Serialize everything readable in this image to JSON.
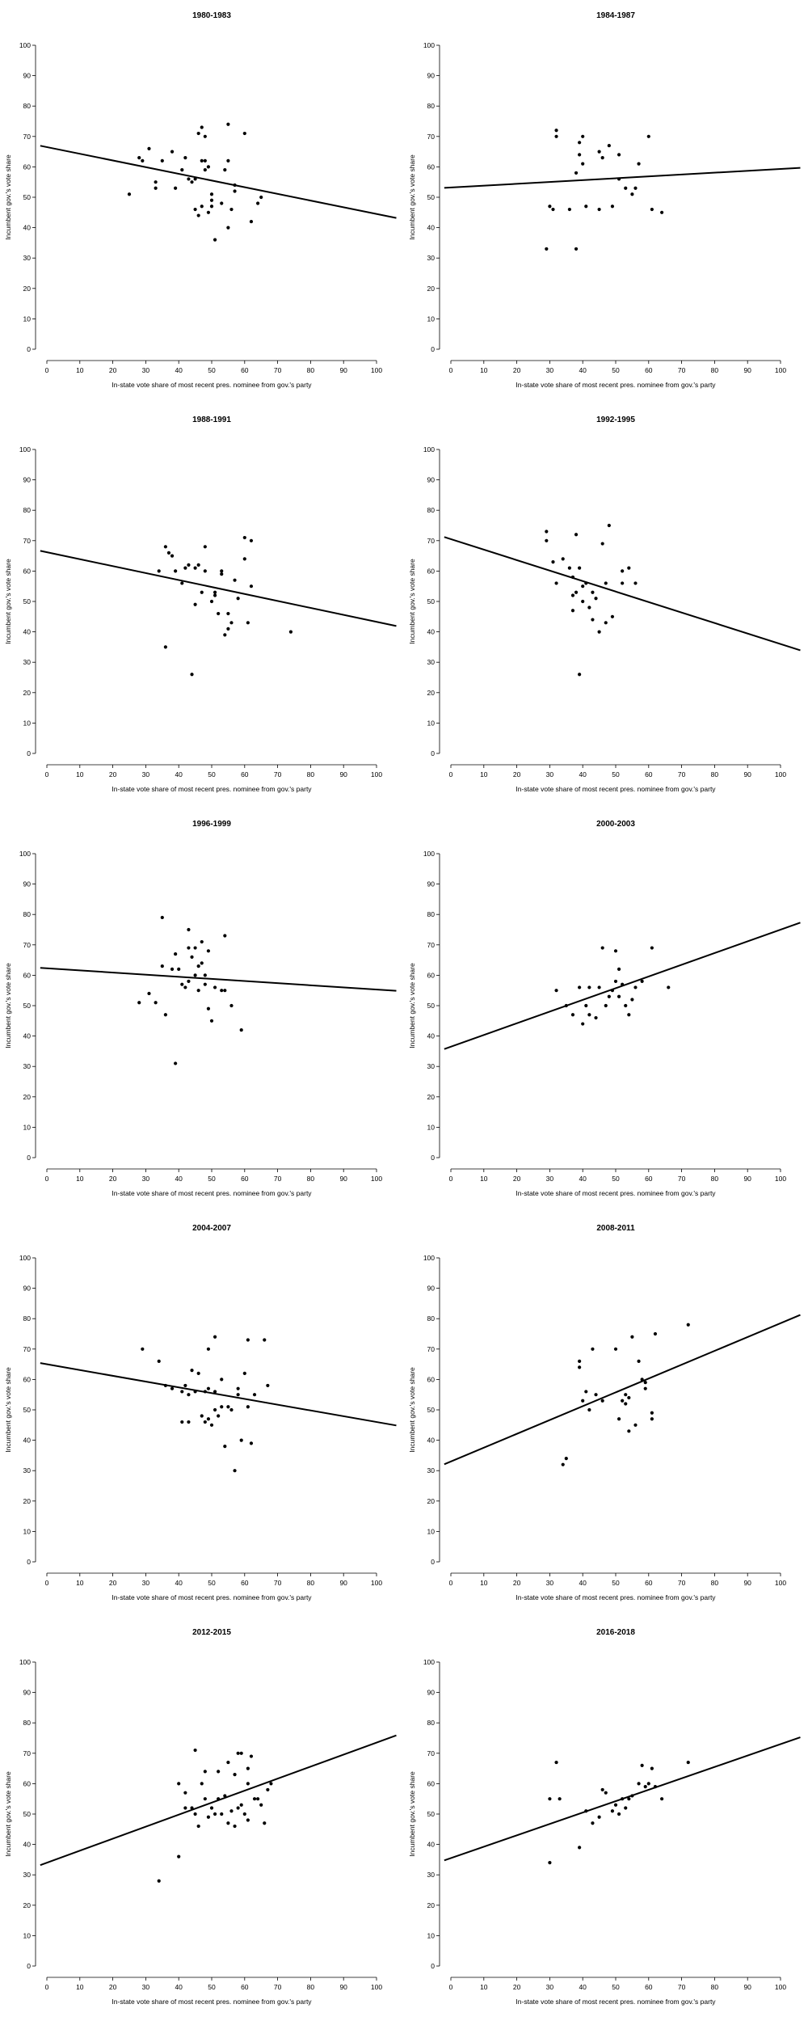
{
  "chart_data": [
    {
      "type": "scatter",
      "title": "1980-1983",
      "xlabel": "In-state vote share of most recent pres. nominee from gov.'s party",
      "ylabel": "Incumbent gov.'s vote share",
      "xlim": [
        0,
        100
      ],
      "ylim": [
        0,
        100
      ],
      "fit": {
        "y_at_x0": 66.5,
        "y_at_x100": 44.5
      },
      "points": [
        [
          25,
          51
        ],
        [
          28,
          63
        ],
        [
          29,
          62
        ],
        [
          31,
          66
        ],
        [
          33,
          53
        ],
        [
          33,
          55
        ],
        [
          35,
          62
        ],
        [
          38,
          65
        ],
        [
          39,
          53
        ],
        [
          41,
          59
        ],
        [
          42,
          63
        ],
        [
          43,
          56
        ],
        [
          44,
          55
        ],
        [
          45,
          46
        ],
        [
          45,
          56
        ],
        [
          46,
          44
        ],
        [
          47,
          47
        ],
        [
          46,
          71
        ],
        [
          47,
          73
        ],
        [
          48,
          70
        ],
        [
          47,
          62
        ],
        [
          48,
          62
        ],
        [
          48,
          59
        ],
        [
          49,
          60
        ],
        [
          49,
          45
        ],
        [
          50,
          51
        ],
        [
          50,
          49
        ],
        [
          50,
          47
        ],
        [
          51,
          36
        ],
        [
          53,
          48
        ],
        [
          54,
          59
        ],
        [
          55,
          74
        ],
        [
          55,
          62
        ],
        [
          55,
          40
        ],
        [
          56,
          46
        ],
        [
          57,
          52
        ],
        [
          57,
          54
        ],
        [
          60,
          71
        ],
        [
          62,
          42
        ],
        [
          64,
          48
        ],
        [
          65,
          50
        ]
      ]
    },
    {
      "type": "scatter",
      "title": "1984-1987",
      "xlabel": "In-state vote share of most recent pres. nominee from gov.'s party",
      "ylabel": "Incumbent gov.'s vote share",
      "xlim": [
        0,
        100
      ],
      "ylim": [
        0,
        100
      ],
      "fit": {
        "y_at_x0": 53.2,
        "y_at_x100": 59.3
      },
      "points": [
        [
          29,
          33
        ],
        [
          30,
          47
        ],
        [
          31,
          46
        ],
        [
          32,
          72
        ],
        [
          32,
          70
        ],
        [
          36,
          46
        ],
        [
          38,
          33
        ],
        [
          38,
          58
        ],
        [
          39,
          64
        ],
        [
          39,
          68
        ],
        [
          40,
          70
        ],
        [
          40,
          61
        ],
        [
          41,
          47
        ],
        [
          45,
          46
        ],
        [
          45,
          65
        ],
        [
          46,
          63
        ],
        [
          48,
          67
        ],
        [
          49,
          47
        ],
        [
          51,
          56
        ],
        [
          51,
          64
        ],
        [
          53,
          53
        ],
        [
          55,
          51
        ],
        [
          56,
          53
        ],
        [
          57,
          61
        ],
        [
          60,
          70
        ],
        [
          61,
          46
        ],
        [
          64,
          45
        ]
      ]
    },
    {
      "type": "scatter",
      "title": "1988-1991",
      "xlabel": "In-state vote share of most recent pres. nominee from gov.'s party",
      "ylabel": "Incumbent gov.'s vote share",
      "xlim": [
        0,
        100
      ],
      "ylim": [
        0,
        100
      ],
      "fit": {
        "y_at_x0": 66.2,
        "y_at_x100": 43.3
      },
      "points": [
        [
          34,
          60
        ],
        [
          36,
          35
        ],
        [
          36,
          68
        ],
        [
          37,
          66
        ],
        [
          38,
          65
        ],
        [
          39,
          60
        ],
        [
          41,
          56
        ],
        [
          42,
          61
        ],
        [
          43,
          62
        ],
        [
          44,
          26
        ],
        [
          45,
          49
        ],
        [
          45,
          61
        ],
        [
          46,
          62
        ],
        [
          47,
          53
        ],
        [
          48,
          68
        ],
        [
          48,
          60
        ],
        [
          50,
          50
        ],
        [
          51,
          52
        ],
        [
          51,
          53
        ],
        [
          52,
          46
        ],
        [
          53,
          59
        ],
        [
          53,
          60
        ],
        [
          54,
          39
        ],
        [
          55,
          41
        ],
        [
          55,
          46
        ],
        [
          56,
          43
        ],
        [
          57,
          57
        ],
        [
          58,
          51
        ],
        [
          60,
          71
        ],
        [
          60,
          64
        ],
        [
          61,
          43
        ],
        [
          62,
          70
        ],
        [
          62,
          55
        ],
        [
          74,
          40
        ]
      ]
    },
    {
      "type": "scatter",
      "title": "1992-1995",
      "xlabel": "In-state vote share of most recent pres. nominee from gov.'s party",
      "ylabel": "Incumbent gov.'s vote share",
      "xlim": [
        0,
        100
      ],
      "ylim": [
        0,
        100
      ],
      "fit": {
        "y_at_x0": 70.5,
        "y_at_x100": 36.0
      },
      "points": [
        [
          29,
          73
        ],
        [
          29,
          70
        ],
        [
          31,
          63
        ],
        [
          32,
          56
        ],
        [
          34,
          64
        ],
        [
          36,
          61
        ],
        [
          37,
          58
        ],
        [
          37,
          47
        ],
        [
          37,
          52
        ],
        [
          38,
          72
        ],
        [
          38,
          53
        ],
        [
          39,
          26
        ],
        [
          39,
          61
        ],
        [
          40,
          50
        ],
        [
          40,
          55
        ],
        [
          41,
          56
        ],
        [
          42,
          48
        ],
        [
          43,
          53
        ],
        [
          43,
          44
        ],
        [
          44,
          51
        ],
        [
          45,
          40
        ],
        [
          46,
          69
        ],
        [
          47,
          43
        ],
        [
          47,
          56
        ],
        [
          48,
          75
        ],
        [
          49,
          45
        ],
        [
          52,
          56
        ],
        [
          52,
          60
        ],
        [
          54,
          61
        ],
        [
          56,
          56
        ]
      ]
    },
    {
      "type": "scatter",
      "title": "1996-1999",
      "xlabel": "In-state vote share of most recent pres. nominee from gov.'s party",
      "ylabel": "Incumbent gov.'s vote share",
      "xlim": [
        0,
        100
      ],
      "ylim": [
        0,
        100
      ],
      "fit": {
        "y_at_x0": 62.3,
        "y_at_x100": 55.3
      },
      "points": [
        [
          28,
          51
        ],
        [
          31,
          54
        ],
        [
          33,
          51
        ],
        [
          35,
          79
        ],
        [
          35,
          63
        ],
        [
          36,
          47
        ],
        [
          38,
          62
        ],
        [
          39,
          67
        ],
        [
          39,
          31
        ],
        [
          40,
          62
        ],
        [
          41,
          57
        ],
        [
          42,
          56
        ],
        [
          43,
          75
        ],
        [
          43,
          69
        ],
        [
          43,
          58
        ],
        [
          44,
          66
        ],
        [
          45,
          69
        ],
        [
          45,
          60
        ],
        [
          46,
          63
        ],
        [
          46,
          55
        ],
        [
          47,
          64
        ],
        [
          47,
          71
        ],
        [
          48,
          57
        ],
        [
          48,
          60
        ],
        [
          49,
          68
        ],
        [
          49,
          49
        ],
        [
          50,
          45
        ],
        [
          51,
          56
        ],
        [
          53,
          55
        ],
        [
          54,
          73
        ],
        [
          54,
          55
        ],
        [
          56,
          50
        ],
        [
          59,
          42
        ]
      ]
    },
    {
      "type": "scatter",
      "title": "2000-2003",
      "xlabel": "In-state vote share of most recent pres. nominee from gov.'s party",
      "ylabel": "Incumbent gov.'s vote share",
      "xlim": [
        0,
        100
      ],
      "ylim": [
        0,
        100
      ],
      "fit": {
        "y_at_x0": 36.5,
        "y_at_x100": 75.0
      },
      "points": [
        [
          32,
          55
        ],
        [
          35,
          50
        ],
        [
          37,
          47
        ],
        [
          39,
          56
        ],
        [
          40,
          44
        ],
        [
          41,
          50
        ],
        [
          42,
          47
        ],
        [
          42,
          56
        ],
        [
          44,
          46
        ],
        [
          45,
          56
        ],
        [
          46,
          69
        ],
        [
          47,
          50
        ],
        [
          48,
          53
        ],
        [
          49,
          55
        ],
        [
          50,
          68
        ],
        [
          50,
          58
        ],
        [
          51,
          62
        ],
        [
          51,
          53
        ],
        [
          52,
          57
        ],
        [
          53,
          50
        ],
        [
          54,
          47
        ],
        [
          55,
          52
        ],
        [
          56,
          56
        ],
        [
          58,
          58
        ],
        [
          61,
          69
        ],
        [
          66,
          56
        ]
      ]
    },
    {
      "type": "scatter",
      "title": "2004-2007",
      "xlabel": "In-state vote share of most recent pres. nominee from gov.'s party",
      "ylabel": "Incumbent gov.'s vote share",
      "xlim": [
        0,
        100
      ],
      "ylim": [
        0,
        100
      ],
      "fit": {
        "y_at_x0": 65.0,
        "y_at_x100": 46.0
      },
      "points": [
        [
          29,
          70
        ],
        [
          34,
          66
        ],
        [
          36,
          58
        ],
        [
          38,
          57
        ],
        [
          41,
          46
        ],
        [
          41,
          56
        ],
        [
          42,
          58
        ],
        [
          43,
          46
        ],
        [
          43,
          55
        ],
        [
          44,
          63
        ],
        [
          45,
          56
        ],
        [
          46,
          62
        ],
        [
          47,
          48
        ],
        [
          48,
          46
        ],
        [
          48,
          56
        ],
        [
          49,
          70
        ],
        [
          49,
          47
        ],
        [
          49,
          57
        ],
        [
          50,
          45
        ],
        [
          51,
          50
        ],
        [
          51,
          56
        ],
        [
          51,
          74
        ],
        [
          52,
          48
        ],
        [
          53,
          51
        ],
        [
          53,
          60
        ],
        [
          54,
          38
        ],
        [
          55,
          51
        ],
        [
          56,
          50
        ],
        [
          57,
          30
        ],
        [
          58,
          57
        ],
        [
          58,
          55
        ],
        [
          59,
          40
        ],
        [
          60,
          62
        ],
        [
          61,
          73
        ],
        [
          61,
          51
        ],
        [
          62,
          39
        ],
        [
          63,
          55
        ],
        [
          66,
          73
        ],
        [
          67,
          58
        ]
      ]
    },
    {
      "type": "scatter",
      "title": "2008-2011",
      "xlabel": "In-state vote share of most recent pres. nominee from gov.'s party",
      "ylabel": "Incumbent gov.'s vote share",
      "xlim": [
        0,
        100
      ],
      "ylim": [
        0,
        100
      ],
      "fit": {
        "y_at_x0": 33.0,
        "y_at_x100": 78.5
      },
      "points": [
        [
          34,
          32
        ],
        [
          35,
          34
        ],
        [
          39,
          66
        ],
        [
          39,
          64
        ],
        [
          40,
          53
        ],
        [
          41,
          56
        ],
        [
          42,
          50
        ],
        [
          43,
          70
        ],
        [
          44,
          55
        ],
        [
          46,
          53
        ],
        [
          50,
          70
        ],
        [
          51,
          47
        ],
        [
          52,
          53
        ],
        [
          53,
          55
        ],
        [
          53,
          52
        ],
        [
          54,
          43
        ],
        [
          54,
          54
        ],
        [
          55,
          74
        ],
        [
          56,
          45
        ],
        [
          57,
          66
        ],
        [
          58,
          60
        ],
        [
          59,
          59
        ],
        [
          59,
          57
        ],
        [
          61,
          47
        ],
        [
          61,
          49
        ],
        [
          62,
          75
        ],
        [
          72,
          78
        ]
      ]
    },
    {
      "type": "scatter",
      "title": "2012-2015",
      "xlabel": "In-state vote share of most recent pres. nominee from gov.'s party",
      "ylabel": "Incumbent gov.'s vote share",
      "xlim": [
        0,
        100
      ],
      "ylim": [
        0,
        100
      ],
      "fit": {
        "y_at_x0": 34.0,
        "y_at_x100": 73.5
      },
      "points": [
        [
          34,
          28
        ],
        [
          40,
          36
        ],
        [
          40,
          60
        ],
        [
          42,
          57
        ],
        [
          42,
          52
        ],
        [
          44,
          52
        ],
        [
          45,
          71
        ],
        [
          45,
          50
        ],
        [
          46,
          46
        ],
        [
          47,
          60
        ],
        [
          48,
          64
        ],
        [
          48,
          55
        ],
        [
          49,
          49
        ],
        [
          50,
          52
        ],
        [
          51,
          50
        ],
        [
          52,
          64
        ],
        [
          52,
          55
        ],
        [
          53,
          50
        ],
        [
          54,
          56
        ],
        [
          55,
          47
        ],
        [
          55,
          67
        ],
        [
          56,
          51
        ],
        [
          57,
          46
        ],
        [
          57,
          63
        ],
        [
          58,
          52
        ],
        [
          58,
          70
        ],
        [
          59,
          70
        ],
        [
          59,
          53
        ],
        [
          60,
          50
        ],
        [
          61,
          60
        ],
        [
          61,
          65
        ],
        [
          61,
          48
        ],
        [
          62,
          69
        ],
        [
          63,
          55
        ],
        [
          64,
          55
        ],
        [
          65,
          53
        ],
        [
          66,
          47
        ],
        [
          67,
          58
        ],
        [
          68,
          60
        ]
      ]
    },
    {
      "type": "scatter",
      "title": "2016-2018",
      "xlabel": "In-state vote share of most recent pres. nominee from gov.'s party",
      "ylabel": "Incumbent gov.'s vote share",
      "xlim": [
        0,
        100
      ],
      "ylim": [
        0,
        100
      ],
      "fit": {
        "y_at_x0": 35.5,
        "y_at_x100": 73.0
      },
      "points": [
        [
          30,
          34
        ],
        [
          30,
          55
        ],
        [
          32,
          67
        ],
        [
          33,
          55
        ],
        [
          39,
          39
        ],
        [
          41,
          51
        ],
        [
          43,
          47
        ],
        [
          45,
          49
        ],
        [
          46,
          58
        ],
        [
          47,
          57
        ],
        [
          49,
          51
        ],
        [
          50,
          53
        ],
        [
          51,
          50
        ],
        [
          52,
          55
        ],
        [
          53,
          52
        ],
        [
          54,
          55
        ],
        [
          55,
          56
        ],
        [
          57,
          60
        ],
        [
          58,
          66
        ],
        [
          59,
          59
        ],
        [
          60,
          60
        ],
        [
          61,
          65
        ],
        [
          62,
          59
        ],
        [
          64,
          55
        ],
        [
          72,
          67
        ]
      ]
    }
  ]
}
